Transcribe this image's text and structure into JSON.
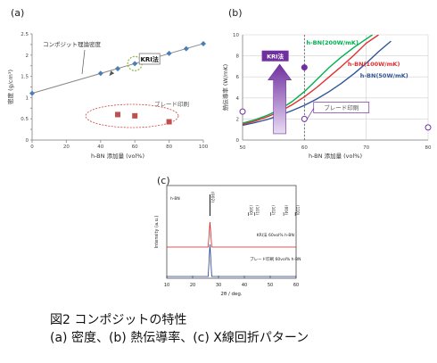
{
  "panels": {
    "a": "(a)",
    "b": "(b)",
    "c": "(c)"
  },
  "caption": {
    "line1": "図2 コンポジットの特性",
    "line2": "(a) 密度、(b) 熱伝導率、(c) X線回折パターン"
  },
  "chart_data": [
    {
      "id": "a",
      "type": "scatter",
      "xlabel": "h-BN 添加量 (vol%)",
      "ylabel": "密度 (g/cm³)",
      "xlim": [
        0,
        100
      ],
      "ylim": [
        0,
        2.5
      ],
      "xticks": [
        0,
        20,
        40,
        60,
        80,
        100
      ],
      "yticks": [
        0,
        0.25,
        0.5,
        0.75,
        1,
        1.25,
        1.5,
        1.75,
        2,
        2.25,
        2.5
      ],
      "ytick_labels": [
        "0",
        "",
        "0.5",
        "",
        "1",
        "",
        "1.5",
        "",
        "2",
        "",
        "2.5"
      ],
      "grid": false,
      "series": [
        {
          "name": "コンポジット理論密度",
          "style": "line",
          "color": "#888888",
          "x": [
            0,
            100
          ],
          "y": [
            1.1,
            2.27
          ]
        },
        {
          "name": "",
          "style": "diamond",
          "color": "#4a7fb5",
          "x": [
            0,
            40,
            50,
            60,
            70,
            80,
            90,
            100
          ],
          "y": [
            1.1,
            1.57,
            1.68,
            1.8,
            1.92,
            2.04,
            2.15,
            2.27
          ]
        },
        {
          "name": "ブレード印刷",
          "style": "square",
          "color": "#c0504d",
          "x": [
            50,
            60,
            80
          ],
          "y": [
            0.6,
            0.57,
            0.43
          ]
        }
      ],
      "annotations": {
        "theory": "コンポジット理論密度",
        "kri": "KRI法",
        "blade": "ブレード印刷"
      }
    },
    {
      "id": "b",
      "type": "line",
      "xlabel": "h-BN 添加量 (vol%)",
      "ylabel": "熱伝導率 (W/mK)",
      "xlim": [
        50,
        80
      ],
      "ylim": [
        0,
        10
      ],
      "xticks": [
        50,
        60,
        70,
        80
      ],
      "yticks": [
        0,
        2,
        4,
        6,
        8,
        10
      ],
      "grid": true,
      "vline": 60,
      "series": [
        {
          "name": "h-BN(200W/mK)",
          "color": "#00b050",
          "x": [
            50,
            52,
            54,
            56,
            58,
            60,
            62,
            64,
            66,
            68,
            70,
            71
          ],
          "y": [
            1.6,
            1.92,
            2.35,
            2.9,
            3.65,
            4.6,
            5.75,
            6.9,
            7.9,
            8.8,
            9.6,
            10
          ]
        },
        {
          "name": "h-BN(100W/mK)",
          "color": "#e03030",
          "x": [
            50,
            52,
            54,
            56,
            58,
            60,
            62,
            64,
            66,
            68,
            70,
            72
          ],
          "y": [
            1.5,
            1.8,
            2.2,
            2.7,
            3.35,
            4.1,
            5.0,
            6.0,
            7.0,
            8.05,
            9.2,
            10
          ]
        },
        {
          "name": "h-BN(50W/mK)",
          "color": "#2f5597",
          "x": [
            50,
            52,
            54,
            56,
            58,
            60,
            62,
            64,
            66,
            68,
            70,
            72,
            74
          ],
          "y": [
            1.4,
            1.65,
            1.95,
            2.35,
            2.8,
            3.3,
            3.9,
            4.6,
            5.4,
            6.3,
            7.3,
            8.4,
            9.4
          ]
        }
      ],
      "points": [
        {
          "x": 60,
          "y": 6.9,
          "filled": true
        },
        {
          "x": 60,
          "y": 2.0,
          "filled": false
        },
        {
          "x": 50,
          "y": 2.7,
          "filled": false
        },
        {
          "x": 80,
          "y": 1.2,
          "filled": false
        }
      ],
      "annotations": {
        "kri": "KRI法",
        "blade": "ブレード印刷"
      }
    },
    {
      "id": "c",
      "type": "line",
      "xlabel": "2θ / deg.",
      "ylabel": "Intensity (a.u.)",
      "xlim": [
        10,
        60
      ],
      "xticks": [
        10,
        20,
        30,
        40,
        50,
        60
      ],
      "peak_label_top": "(002)",
      "hkl_labels": [
        "(100)",
        "(101)",
        "(102)",
        "(004)",
        "(110)"
      ],
      "hkl_positions": [
        41.6,
        43.9,
        50.2,
        55.2,
        59.7
      ],
      "ref_label": "h-BN",
      "series": [
        {
          "name": "KRI法 60vol% h-BN",
          "color": "#d02020",
          "peak_x": 26.7
        },
        {
          "name": "ブレード印刷 60vol% h-BN",
          "color": "#1f3a93",
          "peak_x": 26.7
        }
      ]
    }
  ]
}
